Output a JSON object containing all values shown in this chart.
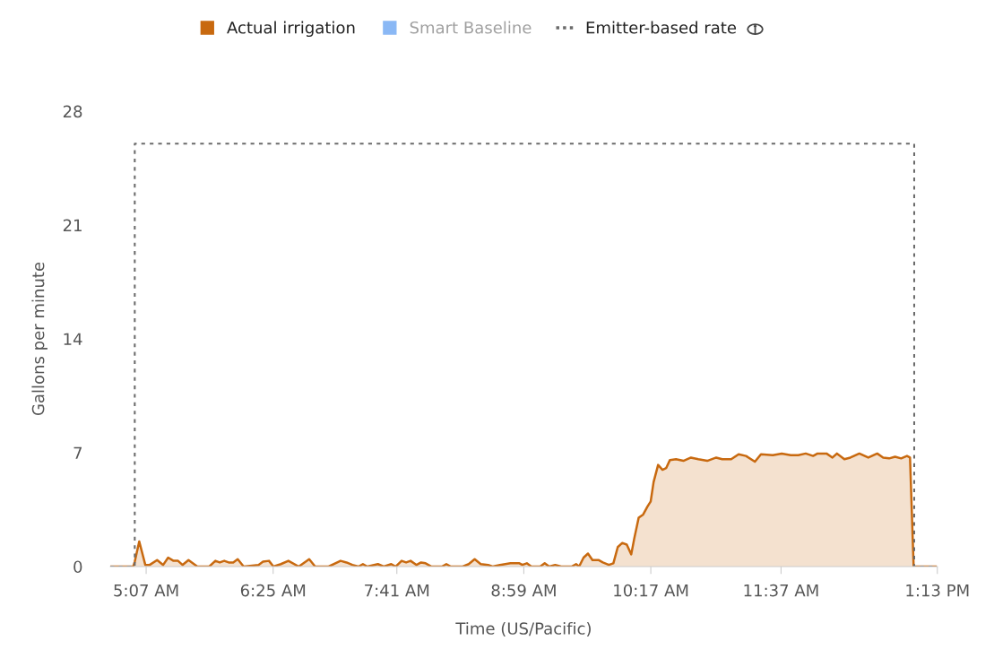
{
  "chart_data": {
    "type": "area",
    "xlabel": "Time (US/Pacific)",
    "ylabel": "Gallons per minute",
    "xlim": [
      4.75,
      13.2167
    ],
    "ylim": [
      0,
      28
    ],
    "xticks": [
      {
        "value": 5.1167,
        "label": "5:07 AM"
      },
      {
        "value": 6.4167,
        "label": "6:25 AM"
      },
      {
        "value": 7.6833,
        "label": "7:41 AM"
      },
      {
        "value": 8.9833,
        "label": "8:59 AM"
      },
      {
        "value": 10.2833,
        "label": "10:17 AM"
      },
      {
        "value": 11.6167,
        "label": "11:37 AM"
      },
      {
        "value": 13.2167,
        "label": "1:13 PM"
      }
    ],
    "yticks": [
      0,
      7,
      14,
      21,
      28
    ],
    "grid": false,
    "legend": "top",
    "series": [
      {
        "name": "Actual irrigation",
        "color": "#c8690f",
        "x": [
          4.75,
          4.985,
          5.0,
          5.046,
          5.108,
          5.153,
          5.229,
          5.291,
          5.342,
          5.397,
          5.443,
          5.489,
          5.55,
          5.641,
          5.763,
          5.825,
          5.87,
          5.916,
          5.962,
          6.008,
          6.054,
          6.115,
          6.267,
          6.313,
          6.374,
          6.42,
          6.496,
          6.573,
          6.679,
          6.786,
          6.847,
          6.985,
          7.107,
          7.168,
          7.228,
          7.29,
          7.336,
          7.381,
          7.489,
          7.549,
          7.626,
          7.672,
          7.732,
          7.778,
          7.824,
          7.885,
          7.931,
          7.977,
          8.038,
          8.144,
          8.19,
          8.236,
          8.358,
          8.419,
          8.48,
          8.542,
          8.618,
          8.663,
          8.739,
          8.847,
          8.938,
          8.968,
          9.014,
          9.06,
          9.151,
          9.197,
          9.243,
          9.304,
          9.366,
          9.472,
          9.518,
          9.549,
          9.595,
          9.64,
          9.686,
          9.747,
          9.792,
          9.854,
          9.9,
          9.945,
          9.991,
          10.037,
          10.083,
          10.113,
          10.159,
          10.205,
          10.25,
          10.282,
          10.312,
          10.358,
          10.403,
          10.44,
          10.479,
          10.541,
          10.617,
          10.694,
          10.77,
          10.861,
          10.953,
          11.014,
          11.106,
          11.182,
          11.258,
          11.349,
          11.411,
          11.532,
          11.624,
          11.716,
          11.793,
          11.869,
          11.945,
          11.99,
          12.082,
          12.143,
          12.189,
          12.265,
          12.326,
          12.418,
          12.51,
          12.601,
          12.662,
          12.723,
          12.784,
          12.846,
          12.906,
          12.937,
          12.974,
          13.2
        ],
        "values": [
          0,
          0,
          0.3,
          1.54,
          0.1,
          0.1,
          0.4,
          0.1,
          0.55,
          0.35,
          0.35,
          0.1,
          0.4,
          0,
          0,
          0.35,
          0.25,
          0.35,
          0.25,
          0.25,
          0.45,
          0,
          0.1,
          0.3,
          0.35,
          0,
          0.15,
          0.35,
          0,
          0.45,
          0,
          0,
          0.35,
          0.25,
          0.1,
          0,
          0.15,
          0,
          0.15,
          0,
          0.15,
          0,
          0.35,
          0.25,
          0.35,
          0.1,
          0.25,
          0.2,
          0,
          0,
          0.15,
          0,
          0,
          0.15,
          0.45,
          0.15,
          0.1,
          0,
          0.1,
          0.2,
          0.2,
          0.1,
          0.2,
          0,
          0,
          0.2,
          0,
          0.1,
          0,
          0,
          0.15,
          0,
          0.55,
          0.8,
          0.4,
          0.4,
          0.25,
          0.1,
          0.2,
          1.2,
          1.45,
          1.35,
          0.75,
          1.7,
          3.0,
          3.2,
          3.7,
          4.0,
          5.2,
          6.25,
          5.95,
          6.05,
          6.55,
          6.6,
          6.5,
          6.7,
          6.6,
          6.5,
          6.7,
          6.6,
          6.6,
          6.9,
          6.8,
          6.45,
          6.9,
          6.85,
          6.95,
          6.85,
          6.85,
          6.95,
          6.8,
          6.95,
          6.95,
          6.7,
          6.95,
          6.6,
          6.7,
          6.95,
          6.7,
          6.95,
          6.7,
          6.65,
          6.75,
          6.65,
          6.8,
          6.7,
          0,
          0
        ]
      },
      {
        "name": "Smart Baseline",
        "type": "area",
        "color": "#8ab8f5"
      },
      {
        "name": "Emitter-based rate",
        "type": "line",
        "color": "#6b6b6b",
        "line_style": "dotted",
        "x": [
          4.75,
          5.0,
          5.0,
          12.98,
          12.98,
          13.2
        ],
        "values": [
          0,
          0,
          26,
          26,
          0,
          0
        ]
      }
    ]
  }
}
